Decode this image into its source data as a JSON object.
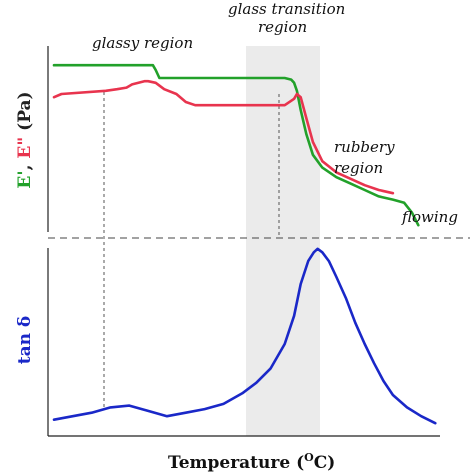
{
  "chart_data": [
    {
      "type": "line",
      "panel": "top",
      "ylabel": {
        "parts": [
          {
            "text": "E'",
            "color": "#22a12a"
          },
          {
            "text": ", ",
            "color": "#222222"
          },
          {
            "text": "E\"",
            "color": "#e8344e"
          },
          {
            "text": " (Pa)",
            "color": "#222222"
          }
        ]
      },
      "annotations": [
        "glassy region",
        "glass transition",
        "region",
        "rubbery",
        "region",
        "flowing"
      ],
      "x": [
        0,
        8,
        13,
        14,
        55,
        59,
        62,
        65,
        67,
        70,
        73,
        77,
        83,
        90,
        93,
        96,
        100,
        105,
        108,
        112,
        117,
        122,
        130,
        140,
        150,
        160,
        170,
        180,
        190,
        200,
        210,
        220,
        230,
        236,
        240,
        245,
        252,
        255,
        258,
        262,
        268,
        275,
        285,
        300,
        315,
        330,
        345,
        360,
        372,
        380,
        387
      ],
      "x_ticks": [],
      "series": [
        {
          "color": "#22a12a",
          "values": [
            0.88,
            null,
            null,
            null,
            null,
            null,
            null,
            null,
            null,
            null,
            null,
            null,
            null,
            null,
            null,
            null,
            null,
            0.88,
            0.85,
            0.8,
            null,
            null,
            null,
            null,
            null,
            null,
            null,
            null,
            null,
            null,
            null,
            null,
            null,
            null,
            null,
            0.8,
            0.79,
            0.77,
            0.72,
            0.6,
            0.45,
            0.32,
            0.24,
            0.18,
            0.14,
            0.1,
            0.06,
            0.04,
            0.02,
            -0.04,
            -0.12
          ]
        },
        {
          "color": "#e8344e",
          "values": [
            0.68,
            0.7,
            null,
            null,
            0.72,
            null,
            null,
            null,
            0.73,
            null,
            null,
            0.74,
            0.76,
            null,
            null,
            0.78,
            0.78,
            null,
            0.77,
            null,
            0.73,
            null,
            0.7,
            0.65,
            0.63,
            null,
            null,
            null,
            null,
            null,
            null,
            null,
            null,
            null,
            null,
            0.63,
            null,
            0.67,
            0.7,
            0.68,
            0.55,
            0.4,
            0.28,
            0.21,
            0.17,
            0.13,
            0.1,
            0.08,
            null,
            null,
            null
          ]
        }
      ],
      "ylim": [
        -0.15,
        1.0
      ]
    },
    {
      "type": "line",
      "panel": "bottom",
      "xlabel": "Temperature (",
      "xlabel_sup": "O",
      "xlabel_end": "C)",
      "ylabel": "tan δ",
      "x": [
        0,
        20,
        40,
        60,
        80,
        100,
        120,
        140,
        160,
        180,
        200,
        215,
        230,
        245,
        255,
        262,
        270,
        276,
        280,
        285,
        292,
        300,
        310,
        320,
        330,
        340,
        350,
        360,
        375,
        390,
        405
      ],
      "series": [
        {
          "color": "#1a28c8",
          "values": [
            0.03,
            0.05,
            0.07,
            0.1,
            0.11,
            0.08,
            0.05,
            0.07,
            0.09,
            0.12,
            0.18,
            0.24,
            0.32,
            0.46,
            0.62,
            0.8,
            0.93,
            0.98,
            1.0,
            0.98,
            0.93,
            0.84,
            0.72,
            0.58,
            0.46,
            0.35,
            0.25,
            0.17,
            0.1,
            0.05,
            0.01
          ]
        }
      ],
      "ylim": [
        0,
        1.05
      ]
    }
  ]
}
